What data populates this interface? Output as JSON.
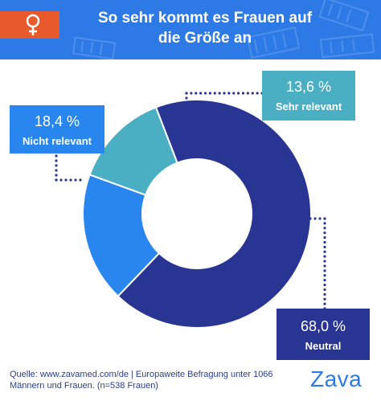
{
  "header": {
    "title_line1": "So sehr kommt es Frauen auf",
    "title_line2": "die Größe an",
    "icon": "venus-icon"
  },
  "chart_data": {
    "type": "pie",
    "style": "donut",
    "categories": [
      "Sehr relevant",
      "Neutral",
      "Nicht relevant"
    ],
    "values": [
      13.6,
      68.0,
      18.4
    ],
    "labels": [
      "13,6 %",
      "68,0 %",
      "18,4 %"
    ],
    "colors": [
      "#4bafc4",
      "#283593",
      "#2a86ef"
    ]
  },
  "source": {
    "line1": "Quelle: www.zavamed.com/de | Europaweite Befragung unter 1066",
    "line2": "Männern und Frauen. (n=538 Frauen)"
  },
  "brand": {
    "logo": "Zava",
    "color": "#2d7ae6"
  }
}
